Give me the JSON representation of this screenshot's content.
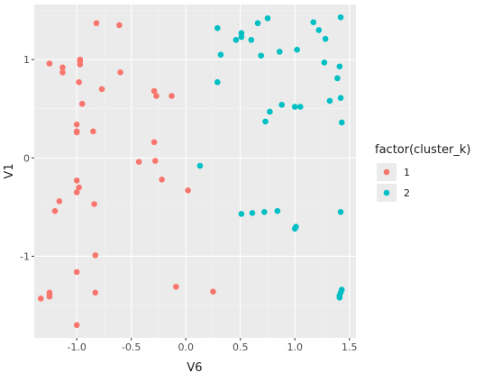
{
  "colors": {
    "panel": "#ebebeb",
    "grid_major": "#ffffff",
    "grid_minor": "#f5f5f5",
    "text": "#4d4d4d",
    "title": "#1a1a1a",
    "cluster_1": "#f8766d",
    "cluster_2": "#00bfc4"
  },
  "chart_data": {
    "type": "scatter",
    "title": "",
    "xlabel": "V6",
    "ylabel": "V1",
    "xlim": [
      -1.39,
      1.56
    ],
    "ylim": [
      -1.83,
      1.56
    ],
    "x_ticks": [
      -1.0,
      -0.5,
      0.0,
      0.5,
      1.0,
      1.5
    ],
    "x_tick_labels": [
      "-1.0",
      "-0.5",
      "0.0",
      "0.5",
      "1.0",
      "1.5"
    ],
    "y_ticks": [
      -1,
      0,
      1
    ],
    "y_tick_labels": [
      "-1",
      "0",
      "1"
    ],
    "grid": true,
    "legend": {
      "title": "factor(cluster_k)",
      "position": "right",
      "entries": [
        {
          "label": "1",
          "color": "#f8766d"
        },
        {
          "label": "2",
          "color": "#00bfc4"
        }
      ]
    },
    "series": [
      {
        "name": "1",
        "color": "#f8766d",
        "points": [
          [
            -0.82,
            1.37
          ],
          [
            -0.61,
            1.35
          ],
          [
            -1.25,
            0.96
          ],
          [
            -1.13,
            0.92
          ],
          [
            -1.13,
            0.87
          ],
          [
            -0.97,
            1.0
          ],
          [
            -0.97,
            0.98
          ],
          [
            -0.97,
            0.95
          ],
          [
            -0.6,
            0.87
          ],
          [
            -0.98,
            0.77
          ],
          [
            -0.77,
            0.7
          ],
          [
            -0.29,
            0.68
          ],
          [
            -0.27,
            0.63
          ],
          [
            -0.13,
            0.63
          ],
          [
            -0.95,
            0.55
          ],
          [
            -1.0,
            0.34
          ],
          [
            -0.85,
            0.27
          ],
          [
            -1.0,
            0.27
          ],
          [
            -1.0,
            0.26
          ],
          [
            -0.29,
            0.16
          ],
          [
            -0.43,
            -0.04
          ],
          [
            -0.28,
            -0.03
          ],
          [
            -0.22,
            -0.22
          ],
          [
            -1.0,
            -0.23
          ],
          [
            -0.98,
            -0.3
          ],
          [
            -1.0,
            -0.35
          ],
          [
            0.02,
            -0.33
          ],
          [
            -1.16,
            -0.44
          ],
          [
            -0.84,
            -0.47
          ],
          [
            -1.2,
            -0.54
          ],
          [
            -0.83,
            -0.99
          ],
          [
            -1.0,
            -1.16
          ],
          [
            -0.09,
            -1.31
          ],
          [
            0.25,
            -1.36
          ],
          [
            -0.83,
            -1.37
          ],
          [
            -1.25,
            -1.37
          ],
          [
            -1.25,
            -1.39
          ],
          [
            -1.25,
            -1.41
          ],
          [
            -1.33,
            -1.43
          ],
          [
            -1.0,
            -1.7
          ]
        ]
      },
      {
        "name": "2",
        "color": "#00bfc4",
        "points": [
          [
            0.75,
            1.42
          ],
          [
            0.66,
            1.37
          ],
          [
            0.29,
            1.32
          ],
          [
            0.51,
            1.27
          ],
          [
            0.51,
            1.23
          ],
          [
            0.46,
            1.2
          ],
          [
            0.6,
            1.2
          ],
          [
            1.17,
            1.38
          ],
          [
            1.22,
            1.3
          ],
          [
            1.42,
            1.43
          ],
          [
            1.28,
            1.21
          ],
          [
            0.32,
            1.05
          ],
          [
            0.69,
            1.04
          ],
          [
            0.86,
            1.08
          ],
          [
            1.02,
            1.1
          ],
          [
            1.27,
            0.97
          ],
          [
            1.41,
            0.93
          ],
          [
            1.39,
            0.81
          ],
          [
            0.29,
            0.77
          ],
          [
            1.42,
            0.61
          ],
          [
            1.32,
            0.58
          ],
          [
            0.88,
            0.54
          ],
          [
            1.0,
            0.52
          ],
          [
            1.05,
            0.52
          ],
          [
            0.77,
            0.47
          ],
          [
            0.73,
            0.37
          ],
          [
            1.43,
            0.36
          ],
          [
            0.13,
            -0.08
          ],
          [
            0.51,
            -0.57
          ],
          [
            0.61,
            -0.56
          ],
          [
            0.72,
            -0.55
          ],
          [
            0.84,
            -0.54
          ],
          [
            1.42,
            -0.55
          ],
          [
            1.01,
            -0.7
          ],
          [
            1.0,
            -0.72
          ],
          [
            1.43,
            -1.34
          ],
          [
            1.42,
            -1.37
          ],
          [
            1.41,
            -1.4
          ],
          [
            1.41,
            -1.42
          ]
        ]
      }
    ]
  }
}
